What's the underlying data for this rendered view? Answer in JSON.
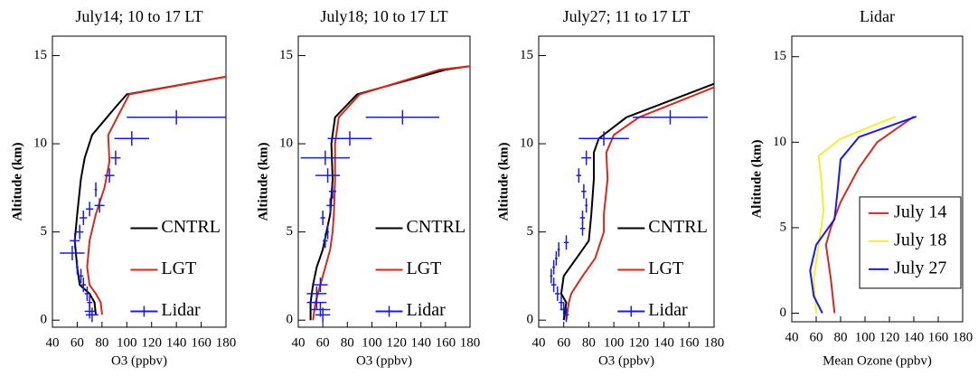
{
  "chart_data": [
    {
      "type": "line",
      "title": "July14; 10 to 17 LT",
      "xlabel": "O3 (ppbv)",
      "ylabel": "Altitude (km)",
      "xlim": [
        40,
        180
      ],
      "ylim": [
        -0.4,
        16.1
      ],
      "xticks": [
        40,
        60,
        80,
        100,
        120,
        140,
        160,
        180
      ],
      "yticks": [
        0,
        5,
        10,
        15
      ],
      "legend": "lower right",
      "series": [
        {
          "name": "CNTRL",
          "color": "#000000",
          "x": [
            75,
            74,
            70,
            62,
            60,
            58,
            60,
            63,
            66,
            72,
            90,
            100,
            180
          ],
          "y": [
            0.3,
            1,
            1.5,
            2,
            3,
            4.5,
            6,
            8,
            9.2,
            10.5,
            12,
            12.8,
            13.8
          ]
        },
        {
          "name": "LGT",
          "color": "#d42a20",
          "x": [
            80,
            79,
            75,
            70,
            68,
            70,
            75,
            82,
            86,
            85,
            102,
            180
          ],
          "y": [
            0.3,
            1,
            1.5,
            2,
            3,
            4.5,
            6,
            7.5,
            9,
            10.5,
            12.8,
            13.8
          ]
        },
        {
          "name": "Lidar",
          "color": "#1a1ae6",
          "marker": "cross",
          "x": [
            72,
            70,
            70,
            68,
            65,
            63,
            60,
            56,
            58,
            62,
            65,
            70,
            78,
            75,
            86,
            91,
            104,
            140
          ],
          "y": [
            0.3,
            0.5,
            1,
            1.5,
            2,
            2.5,
            3,
            3.8,
            4.5,
            5,
            5.8,
            6.3,
            6.5,
            7.4,
            8.2,
            9.2,
            10.3,
            11.5
          ],
          "xerr": [
            5,
            4,
            2,
            2,
            2,
            2,
            1,
            10,
            4,
            3,
            3,
            3,
            4,
            1,
            4,
            4,
            14,
            40
          ]
        }
      ]
    },
    {
      "type": "line",
      "title": "July18; 10 to 17 LT",
      "xlabel": "O3 (ppbv)",
      "ylabel": "Altitude (km)",
      "xlim": [
        40,
        180
      ],
      "ylim": [
        -0.4,
        16.1
      ],
      "xticks": [
        40,
        60,
        80,
        100,
        120,
        140,
        160,
        180
      ],
      "yticks": [
        0,
        5,
        10,
        15
      ],
      "legend": "lower right",
      "series": [
        {
          "name": "CNTRL",
          "color": "#000000",
          "x": [
            50,
            50,
            52,
            55,
            60,
            63,
            66,
            68,
            67,
            70,
            88,
            160,
            180
          ],
          "y": [
            0,
            1,
            2,
            3,
            4,
            5,
            6,
            8,
            10,
            11.5,
            12.8,
            14.2,
            14.4
          ]
        },
        {
          "name": "LGT",
          "color": "#d42a20",
          "x": [
            52,
            54,
            58,
            62,
            66,
            68,
            69,
            70,
            70,
            73,
            90,
            155,
            180
          ],
          "y": [
            0,
            1,
            2,
            3,
            4,
            5,
            6,
            8,
            10,
            11.5,
            12.8,
            14.2,
            14.4
          ]
        },
        {
          "name": "Lidar",
          "color": "#1a1ae6",
          "marker": "cross",
          "x": [
            60,
            58,
            55,
            55,
            58,
            62,
            64,
            60,
            66,
            68,
            64,
            62,
            82,
            125
          ],
          "y": [
            0.3,
            0.6,
            1,
            1.5,
            2,
            4.5,
            5,
            5.8,
            6.5,
            7.3,
            8.2,
            9.2,
            10.3,
            11.5
          ],
          "xerr": [
            6,
            8,
            8,
            8,
            6,
            2,
            1,
            2,
            3,
            3,
            10,
            20,
            18,
            30
          ]
        }
      ]
    },
    {
      "type": "line",
      "title": "July27; 11 to 17 LT",
      "xlabel": "O3 (ppbv)",
      "ylabel": "Altitude (km)",
      "xlim": [
        40,
        180
      ],
      "ylim": [
        -0.4,
        16.1
      ],
      "xticks": [
        40,
        60,
        80,
        100,
        120,
        140,
        160,
        180
      ],
      "yticks": [
        0,
        5,
        10,
        15
      ],
      "legend": "lower right",
      "series": [
        {
          "name": "CNTRL",
          "color": "#000000",
          "x": [
            60,
            62,
            58,
            60,
            70,
            80,
            82,
            84,
            84,
            88,
            110,
            180
          ],
          "y": [
            0,
            1,
            1.5,
            2.5,
            3.5,
            4.5,
            6,
            8,
            9.5,
            10.3,
            11.5,
            13.4
          ]
        },
        {
          "name": "LGT",
          "color": "#d42a20",
          "x": [
            62,
            64,
            66,
            75,
            85,
            92,
            92,
            95,
            94,
            100,
            120,
            180
          ],
          "y": [
            0,
            1,
            1.5,
            2.5,
            3.5,
            5,
            6,
            8,
            9.5,
            10.5,
            11.5,
            13.2
          ]
        },
        {
          "name": "Lidar",
          "color": "#1a1ae6",
          "marker": "cross",
          "x": [
            62,
            60,
            58,
            55,
            52,
            50,
            52,
            54,
            56,
            62,
            75,
            75,
            78,
            76,
            72,
            78,
            92,
            145
          ],
          "y": [
            0.3,
            0.6,
            1,
            1.5,
            2,
            2.5,
            3,
            3.5,
            4,
            4.4,
            5.2,
            5.8,
            6.5,
            7.3,
            8.2,
            9.2,
            10.3,
            11.5
          ],
          "xerr": [
            2,
            3,
            2,
            2,
            2,
            1,
            1,
            1,
            1,
            2,
            2,
            2,
            1,
            2,
            2,
            4,
            20,
            30
          ]
        }
      ]
    },
    {
      "type": "line",
      "title": "Lidar",
      "xlabel": "Mean Ozone (ppbv)",
      "ylabel": "Altitude (km)",
      "xlim": [
        40,
        180
      ],
      "ylim": [
        -0.5,
        16.2
      ],
      "xticks": [
        40,
        60,
        80,
        100,
        120,
        140,
        160,
        180
      ],
      "yticks": [
        0,
        5,
        10,
        15
      ],
      "legend": "center right",
      "legend_box": true,
      "series": [
        {
          "name": "July 14",
          "color": "#d42a20",
          "x": [
            75,
            72,
            68,
            72,
            80,
            95,
            110,
            140
          ],
          "y": [
            0,
            2,
            4,
            5,
            6.5,
            8.5,
            10,
            11.5
          ]
        },
        {
          "name": "July 18",
          "color": "#f0f030",
          "x": [
            60,
            58,
            62,
            66,
            64,
            62,
            80,
            125
          ],
          "y": [
            0,
            2,
            4,
            6,
            8,
            9.2,
            10.2,
            11.5
          ]
        },
        {
          "name": "July 27",
          "color": "#1a1ae6",
          "x": [
            65,
            58,
            55,
            60,
            75,
            78,
            80,
            95,
            142
          ],
          "y": [
            0,
            1,
            2.5,
            4,
            5.5,
            7.5,
            9,
            10.3,
            11.5
          ]
        }
      ]
    }
  ]
}
